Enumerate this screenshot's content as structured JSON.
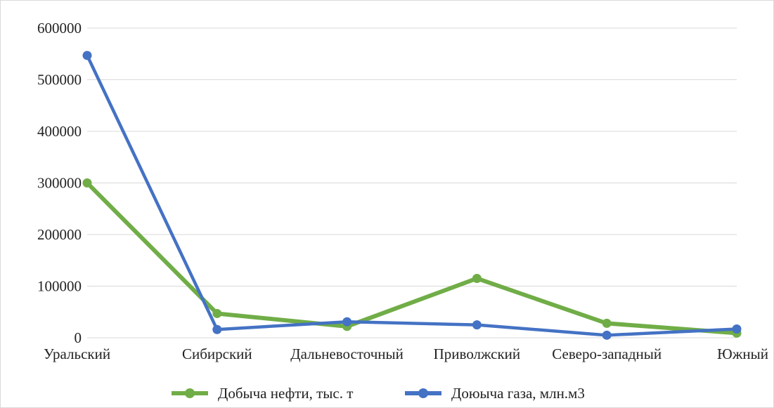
{
  "chart_data": {
    "type": "line",
    "title": "",
    "xlabel": "",
    "ylabel": "",
    "categories": [
      "Уральский",
      "Сибирский",
      "Дальневосточный",
      "Приволжский",
      "Северо-западный",
      "Южный"
    ],
    "ylim": [
      0,
      600000
    ],
    "yticks": [
      0,
      100000,
      200000,
      300000,
      400000,
      500000,
      600000
    ],
    "ytick_labels": [
      "0",
      "100000",
      "200000",
      "300000",
      "400000",
      "500000",
      "600000"
    ],
    "grid": true,
    "legend_position": "bottom",
    "series": [
      {
        "name": "Добыча нефти, тыс. т",
        "color": "#70ad47",
        "values": [
          300000,
          47000,
          22000,
          115000,
          28000,
          9000
        ]
      },
      {
        "name": "Доюыча газа, млн.м3",
        "color": "#4472c4",
        "values": [
          547000,
          16000,
          31000,
          25000,
          5000,
          17000
        ]
      }
    ]
  }
}
